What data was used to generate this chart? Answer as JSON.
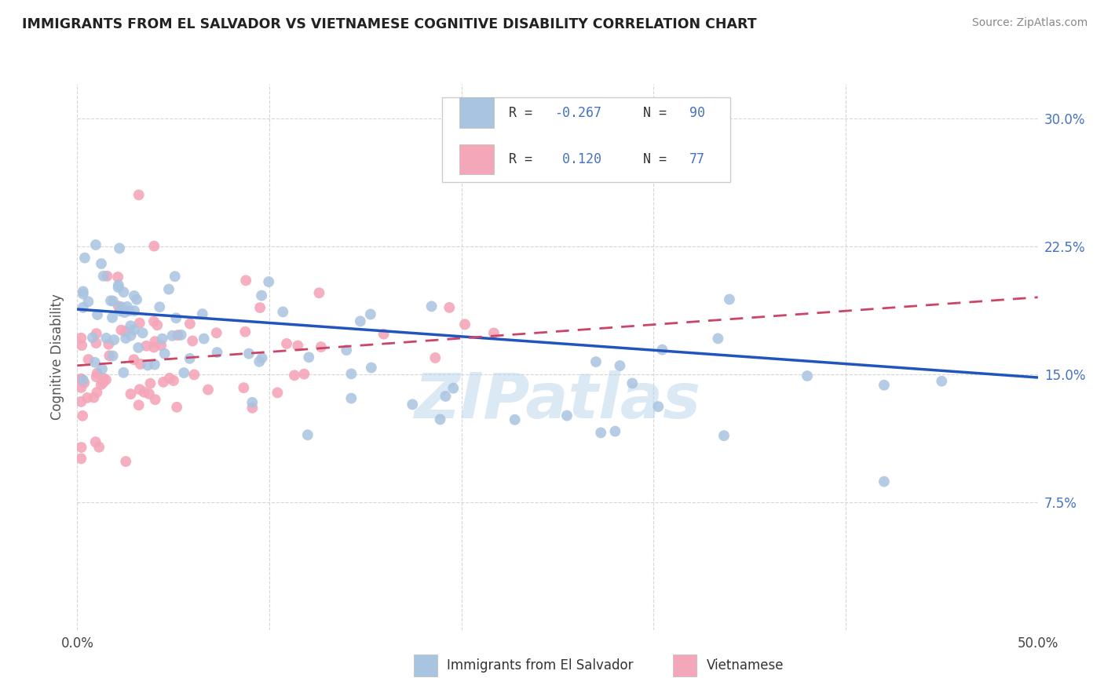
{
  "title": "IMMIGRANTS FROM EL SALVADOR VS VIETNAMESE COGNITIVE DISABILITY CORRELATION CHART",
  "source": "Source: ZipAtlas.com",
  "ylabel": "Cognitive Disability",
  "xlim": [
    0.0,
    0.5
  ],
  "ylim": [
    0.0,
    0.32
  ],
  "xticks": [
    0.0,
    0.1,
    0.2,
    0.3,
    0.4,
    0.5
  ],
  "xticklabels": [
    "0.0%",
    "",
    "",
    "",
    "",
    "50.0%"
  ],
  "yticks_right": [
    0.075,
    0.15,
    0.225,
    0.3
  ],
  "ytick_right_labels": [
    "7.5%",
    "15.0%",
    "22.5%",
    "30.0%"
  ],
  "color_salvador": "#a8c4e0",
  "color_vietnamese": "#f4a7b9",
  "trendline_color_salvador": "#2255bb",
  "trendline_color_vietnamese": "#cc4466",
  "watermark": "ZIPatlas",
  "legend_label1": "Immigrants from El Salvador",
  "legend_label2": "Vietnamese",
  "bg_color": "#ffffff",
  "grid_color": "#cccccc",
  "tick_color": "#4472c4",
  "title_color": "#222222",
  "source_color": "#888888"
}
